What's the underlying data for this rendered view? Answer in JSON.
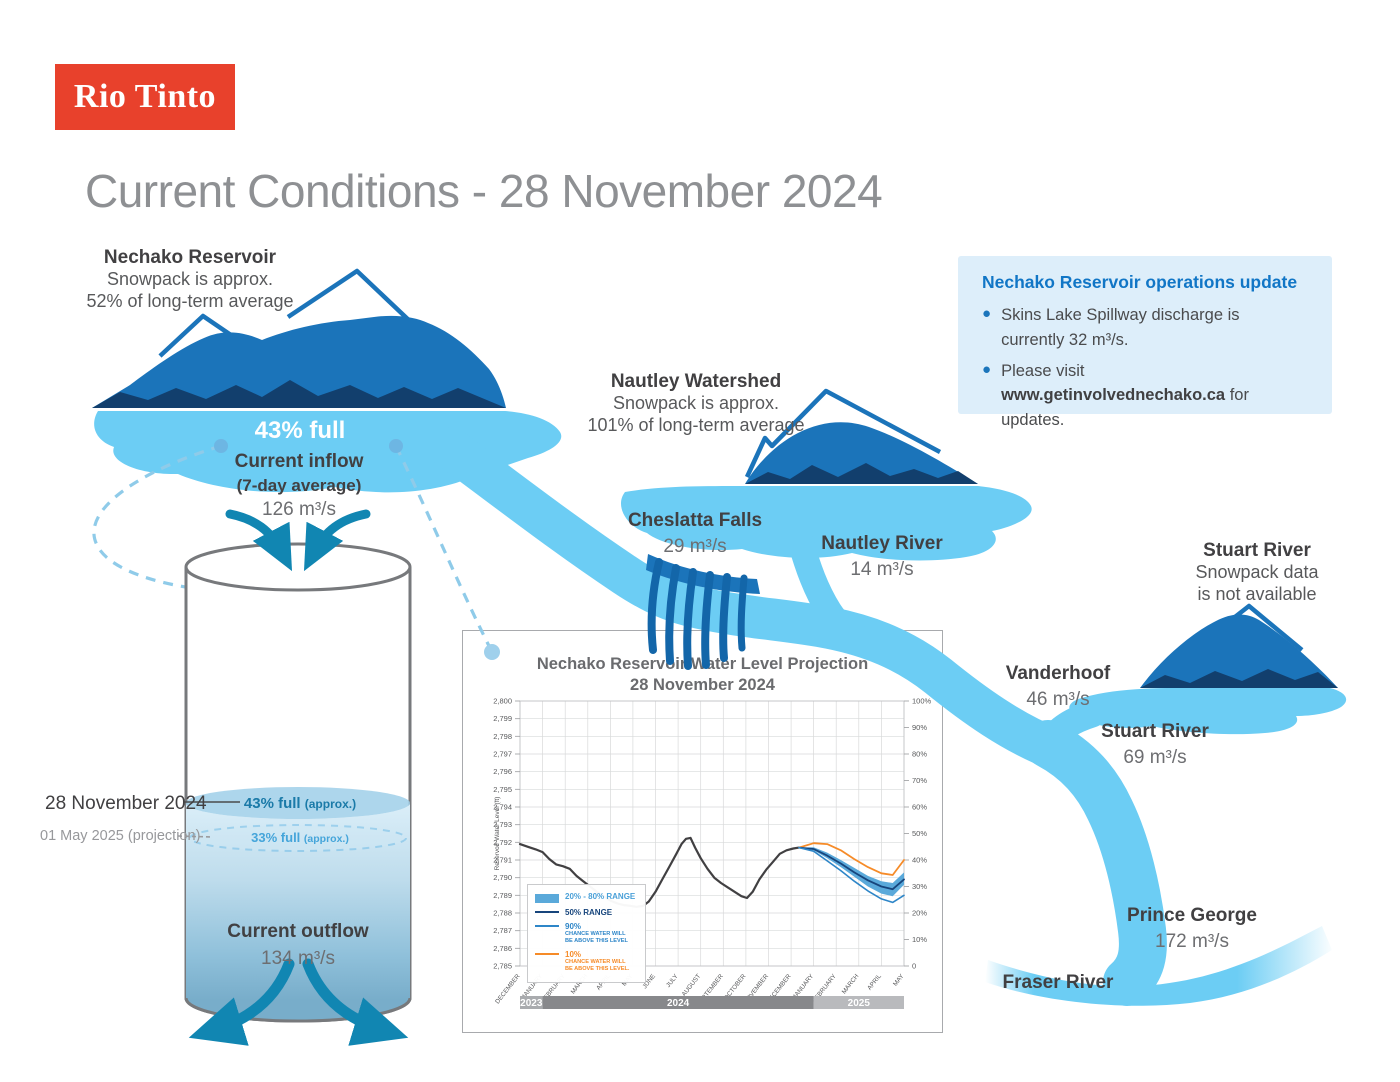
{
  "brand": {
    "logo_text": "Rio Tinto",
    "logo_color": "#e8412c"
  },
  "title": "Current Conditions - 28 November 2024",
  "reservoir": {
    "name": "Nechako Reservoir",
    "snowpack_line1": "Snowpack is approx.",
    "snowpack_line2": "52% of long-term average",
    "fullness": "43% full",
    "inflow_label": "Current inflow",
    "inflow_sub": "(7-day average)",
    "inflow_value": "126 m³/s"
  },
  "tank": {
    "current_date": "28 November 2024",
    "current_level": "43% full",
    "current_approx": "(approx.)",
    "projection_date": "01 May 2025 (projection)",
    "projection_level": "33% full",
    "projection_approx": "(approx.)",
    "outflow_label": "Current outflow",
    "outflow_value": "134 m³/s"
  },
  "nautley": {
    "name": "Nautley Watershed",
    "snowpack_line1": "Snowpack is approx.",
    "snowpack_line2": "101% of long-term average",
    "river_label": "Nautley River",
    "river_value": "14 m³/s"
  },
  "cheslatta": {
    "label": "Cheslatta Falls",
    "value": "29 m³/s"
  },
  "stuart": {
    "name": "Stuart River",
    "snowpack_line1": "Snowpack data",
    "snowpack_line2": "is not available",
    "river_label": "Stuart River",
    "river_value": "69 m³/s"
  },
  "vanderhoof": {
    "label": "Vanderhoof",
    "value": "46 m³/s"
  },
  "prince_george": {
    "label": "Prince George",
    "value": "172 m³/s"
  },
  "fraser": {
    "label": "Fraser River"
  },
  "ops_box": {
    "title": "Nechako Reservoir operations update",
    "bullet1": "Skins Lake Spillway discharge is currently 32 m³/s.",
    "bullet2_prefix": "Please visit ",
    "bullet2_url": "www.getinvolvednechako.ca",
    "bullet2_suffix": " for updates."
  },
  "colors": {
    "water_light": "#6ccdf4",
    "mountain_mid": "#1b74ba",
    "mountain_dark": "#123f6d",
    "arrow_teal": "#1186b2",
    "leader_dash": "#8fcbe9"
  },
  "chart_data": {
    "type": "line",
    "title_line1": "Nechako Reservoir Water Level Projection",
    "title_line2": "28 November 2024",
    "ylabel": "Reservoir Water Level (ft)",
    "ylim": [
      2785,
      2800
    ],
    "y_tick_step": 1,
    "right_axis_ticks": [
      0,
      10,
      20,
      30,
      40,
      50,
      60,
      70,
      80,
      90,
      100
    ],
    "grid": true,
    "x_months": [
      "DECEMBER",
      "JANUARY",
      "FEBRUARY",
      "MARCH",
      "APRIL",
      "MAY",
      "JUNE",
      "JULY",
      "AUGUST",
      "SEPTEMBER",
      "OCTOBER",
      "NOVEMBER",
      "DECEMBER",
      "JANUARY",
      "FEBRUARY",
      "MARCH",
      "APRIL",
      "MAY"
    ],
    "year_bands": [
      {
        "label": "2023",
        "from": 0,
        "to": 1,
        "color": "#a9abae"
      },
      {
        "label": "2024",
        "from": 1,
        "to": 13,
        "color": "#87888b"
      },
      {
        "label": "2025",
        "from": 13,
        "to": 17,
        "color": "#b9babd"
      }
    ],
    "band": {
      "name": "20% - 80% range",
      "color": "#5aa9da",
      "x": [
        12.35,
        13,
        13.6,
        14.2,
        14.8,
        15.4,
        16,
        16.5,
        17
      ],
      "upper": [
        2791.7,
        2791.72,
        2791.42,
        2791.0,
        2790.55,
        2790.1,
        2789.8,
        2789.7,
        2790.3
      ],
      "lower": [
        2791.7,
        2791.55,
        2791.1,
        2790.6,
        2790.05,
        2789.5,
        2789.1,
        2788.95,
        2789.6
      ]
    },
    "series": [
      {
        "name": "Historical water level",
        "color": "#414042",
        "width": 2.2,
        "x": [
          0,
          0.35,
          0.7,
          1.0,
          1.3,
          1.6,
          1.9,
          2.2,
          2.5,
          2.8,
          3.1,
          3.4,
          3.7,
          4.0,
          4.3,
          4.6,
          4.9,
          5.15,
          5.45,
          5.7,
          6.0,
          6.3,
          6.6,
          6.9,
          7.15,
          7.35,
          7.55,
          7.75,
          8.0,
          8.3,
          8.6,
          8.9,
          9.2,
          9.5,
          9.8,
          10.05,
          10.3,
          10.6,
          10.9,
          11.2,
          11.5,
          11.8,
          12.1,
          12.35
        ],
        "y": [
          2791.9,
          2791.75,
          2791.6,
          2791.45,
          2791.05,
          2790.75,
          2790.65,
          2790.5,
          2790.1,
          2789.8,
          2789.5,
          2789.2,
          2788.95,
          2788.7,
          2788.55,
          2788.45,
          2788.4,
          2788.35,
          2788.4,
          2788.65,
          2789.2,
          2789.9,
          2790.6,
          2791.3,
          2791.9,
          2792.2,
          2792.25,
          2791.7,
          2791.1,
          2790.5,
          2790.0,
          2789.7,
          2789.45,
          2789.2,
          2788.95,
          2788.85,
          2789.2,
          2789.9,
          2790.45,
          2790.9,
          2791.35,
          2791.55,
          2791.65,
          2791.7
        ]
      },
      {
        "name": "10% chance water will be above this level",
        "color": "#f68b28",
        "width": 1.8,
        "x": [
          12.35,
          13,
          13.6,
          14.2,
          14.8,
          15.4,
          16,
          16.5,
          17
        ],
        "y": [
          2791.7,
          2791.95,
          2791.9,
          2791.55,
          2791.05,
          2790.6,
          2790.25,
          2790.15,
          2791.0
        ]
      },
      {
        "name": "50% range",
        "color": "#17457c",
        "width": 1.8,
        "x": [
          12.35,
          13,
          13.6,
          14.2,
          14.8,
          15.4,
          16,
          16.5,
          17
        ],
        "y": [
          2791.7,
          2791.62,
          2791.25,
          2790.8,
          2790.3,
          2789.85,
          2789.5,
          2789.35,
          2789.9
        ]
      },
      {
        "name": "90% chance water will be above this level",
        "color": "#2e86c8",
        "width": 1.6,
        "x": [
          12.35,
          13,
          13.6,
          14.2,
          14.8,
          15.4,
          16,
          16.5,
          17
        ],
        "y": [
          2791.7,
          2791.5,
          2790.95,
          2790.4,
          2789.8,
          2789.25,
          2788.8,
          2788.6,
          2789.0
        ]
      }
    ],
    "legend": {
      "items": [
        {
          "swatch": "band",
          "color": "#5aa9da",
          "label": "20% - 80% RANGE",
          "sublabel": "",
          "text_color": "#4aa0d8"
        },
        {
          "swatch": "line",
          "color": "#17457c",
          "label": "50% RANGE",
          "sublabel": "",
          "text_color": "#17457c"
        },
        {
          "swatch": "line",
          "color": "#2e86c8",
          "label": "90%",
          "sublabel": "CHANCE WATER WILL\nBE ABOVE THIS LEVEL",
          "text_color": "#2e86c8"
        },
        {
          "swatch": "line",
          "color": "#f68b28",
          "label": "10%",
          "sublabel": "CHANCE WATER WILL\nBE ABOVE THIS LEVEL.",
          "text_color": "#f68b28"
        }
      ]
    }
  }
}
